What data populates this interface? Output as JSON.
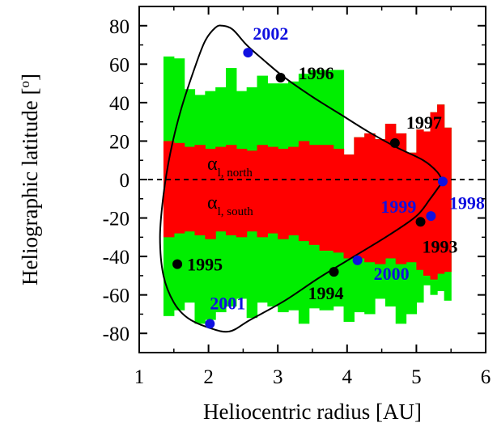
{
  "chart_data": {
    "type": "area",
    "xlabel": "Heliocentric radius [AU]",
    "ylabel_main": "Heliographic latitude [",
    "ylabel_sup": "o",
    "ylabel_end": "]",
    "xlim": [
      1,
      6
    ],
    "ylim": [
      -90,
      90
    ],
    "xticks": [
      1,
      2,
      3,
      4,
      5,
      6
    ],
    "yticks": [
      80,
      60,
      40,
      20,
      0,
      -20,
      -40,
      -60,
      -80
    ],
    "colors": {
      "green": "#00ee00",
      "red": "#ff0000",
      "blue": "#1010e0",
      "black": "#000000"
    },
    "green_band": {
      "x": [
        1.35,
        1.5,
        1.65,
        1.8,
        1.95,
        2.1,
        2.25,
        2.4,
        2.55,
        2.7,
        2.85,
        3.0,
        3.15,
        3.3,
        3.45,
        3.6,
        3.8,
        3.95,
        4.1,
        4.25,
        4.4,
        4.55,
        4.7,
        4.85,
        5.0,
        5.1,
        5.2,
        5.3,
        5.4
      ],
      "upper": [
        64,
        63,
        47,
        44,
        46,
        48,
        58,
        46,
        48,
        54,
        50,
        50,
        51,
        55,
        57,
        57,
        57,
        null,
        null,
        null,
        null,
        null,
        null,
        null,
        null,
        null,
        null,
        null,
        null
      ],
      "lower": [
        -71,
        -68,
        -64,
        -75,
        -73,
        -69,
        -66,
        -62,
        -72,
        -64,
        -66,
        -69,
        -68,
        -75,
        -67,
        -68,
        -66,
        -74,
        -69,
        -70,
        -62,
        -66,
        -75,
        -70,
        -64,
        -55,
        -60,
        -58,
        -63
      ]
    },
    "red_band": {
      "x": [
        1.35,
        1.5,
        1.65,
        1.8,
        1.95,
        2.1,
        2.25,
        2.4,
        2.55,
        2.7,
        2.85,
        3.0,
        3.15,
        3.3,
        3.45,
        3.6,
        3.8,
        3.95,
        4.1,
        4.25,
        4.4,
        4.55,
        4.7,
        4.85,
        5.0,
        5.1,
        5.2,
        5.3,
        5.4
      ],
      "upper": [
        20,
        19,
        17,
        18,
        16,
        17,
        18,
        16,
        15,
        18,
        17,
        16,
        17,
        20,
        18,
        18,
        16,
        13,
        22,
        24,
        21,
        29,
        24,
        14,
        26,
        25,
        35,
        39,
        27
      ],
      "lower": [
        -30,
        -28,
        -27,
        -29,
        -31,
        -27,
        -29,
        -30,
        -27,
        -30,
        -28,
        -31,
        -29,
        -32,
        -34,
        -37,
        -38,
        -41,
        -41,
        -43,
        -44,
        -41,
        -44,
        -43,
        -47,
        -50,
        -52,
        -49,
        -48
      ]
    },
    "orbit": {
      "x": [
        5.38,
        5.3,
        5.1,
        4.7,
        4.3,
        3.9,
        3.5,
        3.1,
        2.8,
        2.55,
        2.35,
        2.2,
        2.1,
        1.95,
        1.8,
        1.6,
        1.45,
        1.35,
        1.3,
        1.35,
        1.5,
        1.7,
        2.0,
        2.3,
        2.6,
        3.1,
        3.6,
        4.1,
        4.6,
        5.0,
        5.2,
        5.38
      ],
      "y": [
        -1,
        4,
        10,
        17,
        25,
        34,
        43,
        53,
        62,
        70,
        78,
        80,
        79,
        72,
        58,
        36,
        14,
        -8,
        -30,
        -50,
        -64,
        -72,
        -77,
        -79,
        -73,
        -63,
        -51,
        -40,
        -29,
        -19,
        -10,
        -1
      ]
    },
    "points": [
      {
        "label": "2002",
        "x": 2.57,
        "y": 66,
        "color": "blue"
      },
      {
        "label": "1996",
        "x": 3.04,
        "y": 53,
        "color": "black"
      },
      {
        "label": "1997",
        "x": 4.69,
        "y": 19,
        "color": "black"
      },
      {
        "label": "1998",
        "x": 5.38,
        "y": -1,
        "color": "blue"
      },
      {
        "label": "1999",
        "x": 5.21,
        "y": -19,
        "color": "blue"
      },
      {
        "label": "1993",
        "x": 5.06,
        "y": -22,
        "color": "black"
      },
      {
        "label": "2000",
        "x": 4.15,
        "y": -42,
        "color": "blue"
      },
      {
        "label": "1994",
        "x": 3.81,
        "y": -48,
        "color": "black"
      },
      {
        "label": "1995",
        "x": 1.55,
        "y": -44,
        "color": "black"
      },
      {
        "label": "2001",
        "x": 2.02,
        "y": -75,
        "color": "blue"
      }
    ],
    "annotations": {
      "north_main": "α",
      "north_sub": "l, north",
      "south_main": "α",
      "south_sub": "l, south"
    }
  }
}
